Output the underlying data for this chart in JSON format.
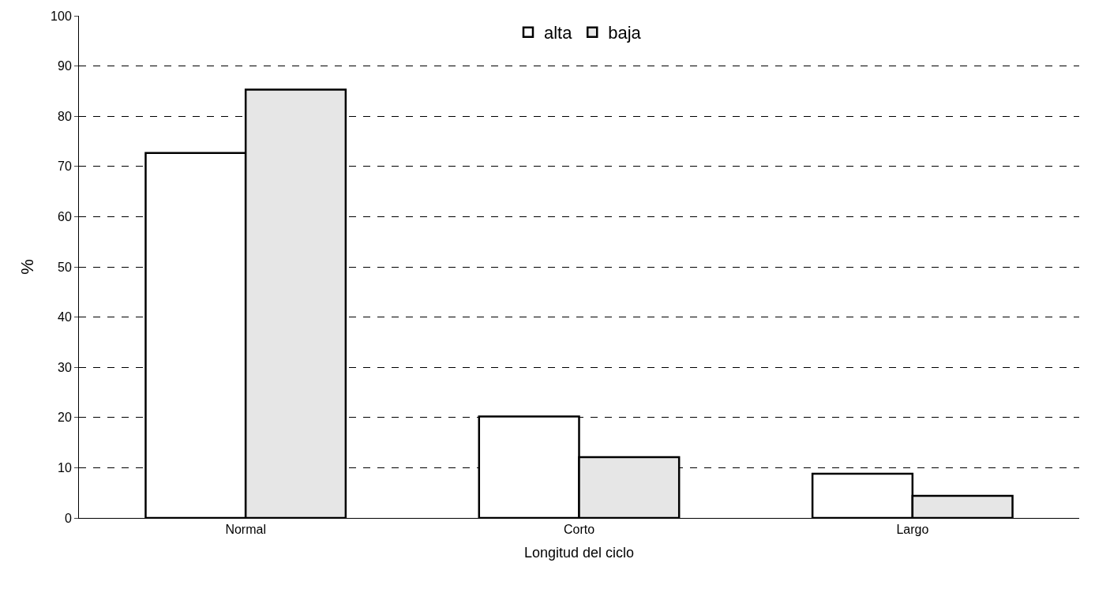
{
  "chart_data": {
    "type": "bar",
    "xlabel": "Longitud del ciclo",
    "ylabel": "%",
    "categories": [
      "Normal",
      "Corto",
      "Largo"
    ],
    "series": [
      {
        "name": "alta",
        "color": "#ffffff",
        "values": [
          72.7,
          20.2,
          8.8
        ]
      },
      {
        "name": "baja",
        "color": "#e6e6e6",
        "values": [
          85.3,
          12.1,
          4.4
        ]
      }
    ],
    "ylim": [
      0,
      100
    ],
    "yticks": [
      0,
      10,
      20,
      30,
      40,
      50,
      60,
      70,
      80,
      90,
      100
    ],
    "grid": "y",
    "legend": "top"
  }
}
